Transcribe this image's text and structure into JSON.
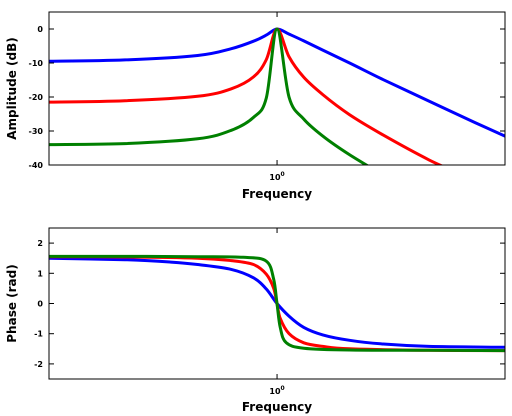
{
  "chart_data": [
    {
      "type": "line",
      "title": "",
      "xlabel": "Frequency",
      "ylabel": "Amplitude (dB)",
      "xscale": "log",
      "xlim": [
        0.0316,
        31.6
      ],
      "ylim": [
        -40,
        5
      ],
      "xticks": [
        {
          "value": 1,
          "label": "10",
          "exponent": "0"
        }
      ],
      "yticks": [
        {
          "value": 0,
          "label": "0"
        },
        {
          "value": -10,
          "label": "-10"
        },
        {
          "value": -20,
          "label": "-20"
        },
        {
          "value": -30,
          "label": "-30"
        },
        {
          "value": -40,
          "label": "-40"
        }
      ],
      "grid": false,
      "legend": "none",
      "series": [
        {
          "color": "#0000ff",
          "x": [
            0.0316,
            0.1,
            0.3,
            0.5,
            0.7,
            0.85,
            1.0,
            1.2,
            1.5,
            2,
            3,
            5,
            10,
            20,
            31.6
          ],
          "y": [
            -9.5,
            -9.1,
            -7.8,
            -5.8,
            -3.6,
            -1.8,
            0,
            -1.5,
            -3.5,
            -6.2,
            -10,
            -14.9,
            -21.2,
            -27.5,
            -31.5
          ]
        },
        {
          "color": "#ff0000",
          "x": [
            0.0316,
            0.1,
            0.3,
            0.5,
            0.7,
            0.85,
            1.0,
            1.2,
            1.5,
            2,
            3,
            5,
            10,
            15
          ],
          "y": [
            -21.5,
            -21.1,
            -19.8,
            -17.6,
            -14.1,
            -9,
            0,
            -8.2,
            -14.2,
            -19.3,
            -25.2,
            -31.2,
            -38.5,
            -42
          ]
        },
        {
          "color": "#008000",
          "x": [
            0.0316,
            0.1,
            0.3,
            0.5,
            0.7,
            0.85,
            1.0,
            1.2,
            1.5,
            2,
            3,
            5,
            7
          ],
          "y": [
            -34,
            -33.7,
            -32.3,
            -29.8,
            -26,
            -20.3,
            0,
            -20.1,
            -26.5,
            -31.5,
            -37,
            -43,
            -47
          ]
        }
      ]
    },
    {
      "type": "line",
      "title": "",
      "xlabel": "Frequency",
      "ylabel": "Phase (rad)",
      "xscale": "log",
      "xlim": [
        0.0316,
        31.6
      ],
      "ylim": [
        -2.5,
        2.5
      ],
      "xticks": [
        {
          "value": 1,
          "label": "10",
          "exponent": "0"
        }
      ],
      "yticks": [
        {
          "value": 2,
          "label": "2"
        },
        {
          "value": 1,
          "label": "1"
        },
        {
          "value": 0,
          "label": "0"
        },
        {
          "value": -1,
          "label": "-1"
        },
        {
          "value": -2,
          "label": "-2"
        }
      ],
      "grid": false,
      "legend": "none",
      "series": [
        {
          "color": "#0000ff",
          "x": [
            0.0316,
            0.1,
            0.2,
            0.3,
            0.5,
            0.7,
            0.85,
            1.0,
            1.2,
            1.5,
            2,
            3,
            5,
            10,
            31.6
          ],
          "y": [
            1.5,
            1.45,
            1.37,
            1.29,
            1.13,
            0.85,
            0.48,
            0,
            -0.42,
            -0.79,
            -1.04,
            -1.22,
            -1.34,
            -1.42,
            -1.45
          ]
        },
        {
          "color": "#ff0000",
          "x": [
            0.0316,
            0.1,
            0.3,
            0.5,
            0.7,
            0.85,
            0.95,
            1.0,
            1.05,
            1.2,
            1.5,
            2,
            3,
            10,
            31.6
          ],
          "y": [
            1.55,
            1.54,
            1.5,
            1.42,
            1.29,
            0.97,
            0.5,
            0,
            -0.5,
            -1.0,
            -1.3,
            -1.42,
            -1.5,
            -1.55,
            -1.56
          ]
        },
        {
          "color": "#008000",
          "x": [
            0.0316,
            0.1,
            0.3,
            0.6,
            0.85,
            0.95,
            1.0,
            1.05,
            1.15,
            1.5,
            3,
            10,
            31.6
          ],
          "y": [
            1.56,
            1.56,
            1.55,
            1.53,
            1.4,
            0.8,
            0,
            -0.8,
            -1.3,
            -1.48,
            -1.54,
            -1.55,
            -1.56
          ]
        }
      ]
    }
  ]
}
